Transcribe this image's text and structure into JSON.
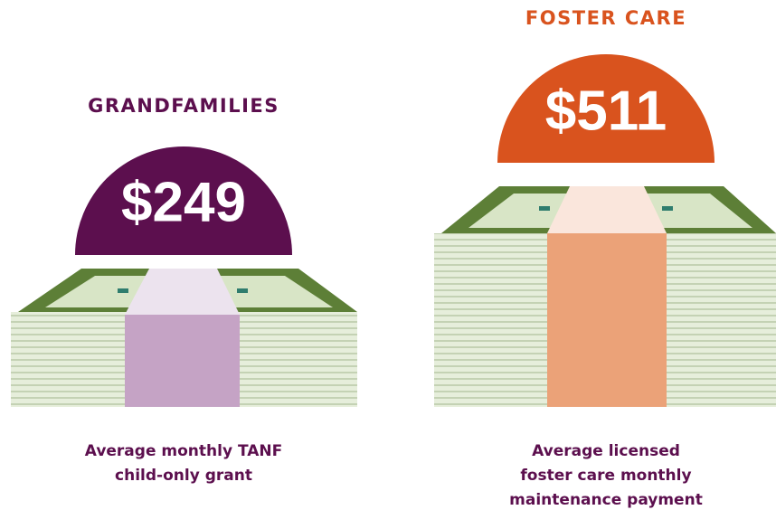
{
  "panels": [
    {
      "heading": "GRANDFAMILIES",
      "amount": "$249",
      "caption": [
        "Average monthly TANF",
        "child-only grant"
      ]
    },
    {
      "heading": "FOSTER CARE",
      "amount": "$511",
      "caption": [
        "Average licensed",
        "foster care monthly",
        "maintenance payment"
      ]
    }
  ]
}
